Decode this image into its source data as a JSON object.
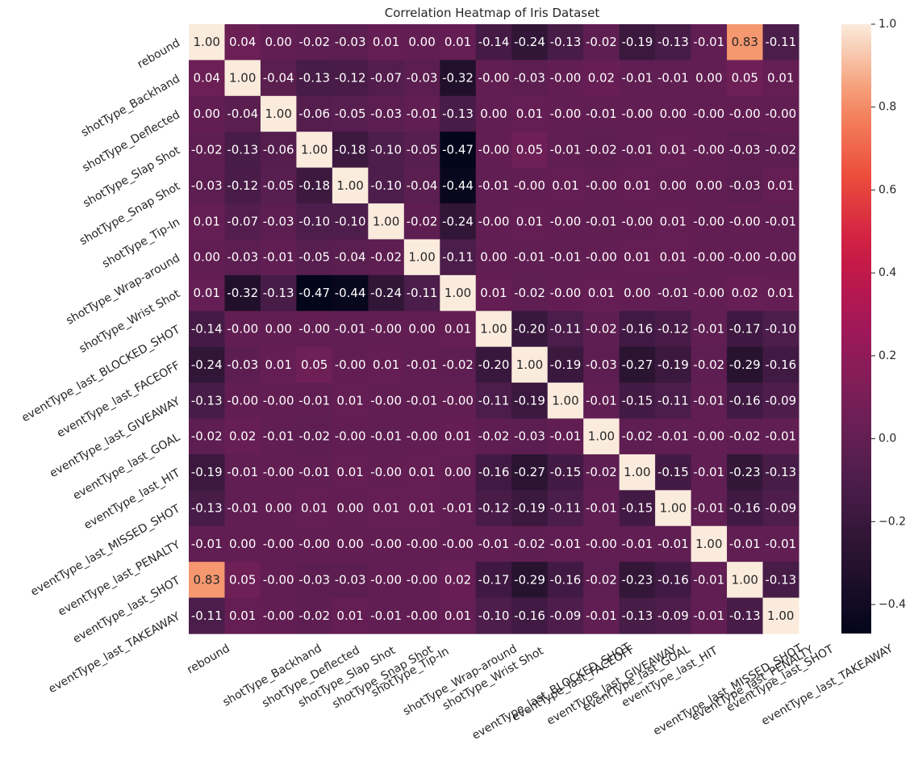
{
  "chart_data": {
    "type": "heatmap",
    "title": "Correlation Heatmap of Iris Dataset",
    "labels": [
      "rebound",
      "shotType_Backhand",
      "shotType_Deflected",
      "shotType_Slap Shot",
      "shotType_Snap Shot",
      "shotType_Tip-In",
      "shotType_Wrap-around",
      "shotType_Wrist Shot",
      "eventType_last_BLOCKED_SHOT",
      "eventType_last_FACEOFF",
      "eventType_last_GIVEAWAY",
      "eventType_last_GOAL",
      "eventType_last_HIT",
      "eventType_last_MISSED_SHOT",
      "eventType_last_PENALTY",
      "eventType_last_SHOT",
      "eventType_last_TAKEAWAY"
    ],
    "values": [
      [
        1.0,
        0.04,
        0.0,
        -0.02,
        -0.03,
        0.01,
        0.0,
        0.01,
        -0.14,
        -0.24,
        -0.13,
        -0.02,
        -0.19,
        -0.13,
        -0.01,
        0.83,
        -0.11
      ],
      [
        0.04,
        1.0,
        -0.04,
        -0.13,
        -0.12,
        -0.07,
        -0.03,
        -0.32,
        -0.0,
        -0.03,
        -0.0,
        0.02,
        -0.01,
        -0.01,
        0.0,
        0.05,
        0.01
      ],
      [
        0.0,
        -0.04,
        1.0,
        -0.06,
        -0.05,
        -0.03,
        -0.01,
        -0.13,
        0.0,
        0.01,
        -0.0,
        -0.01,
        -0.0,
        0.0,
        -0.0,
        -0.0,
        -0.0
      ],
      [
        -0.02,
        -0.13,
        -0.06,
        1.0,
        -0.18,
        -0.1,
        -0.05,
        -0.47,
        -0.0,
        0.05,
        -0.01,
        -0.02,
        -0.01,
        0.01,
        -0.0,
        -0.03,
        -0.02
      ],
      [
        -0.03,
        -0.12,
        -0.05,
        -0.18,
        1.0,
        -0.1,
        -0.04,
        -0.44,
        -0.01,
        -0.0,
        0.01,
        -0.0,
        0.01,
        0.0,
        0.0,
        -0.03,
        0.01
      ],
      [
        0.01,
        -0.07,
        -0.03,
        -0.1,
        -0.1,
        1.0,
        -0.02,
        -0.24,
        -0.0,
        0.01,
        -0.0,
        -0.01,
        -0.0,
        0.01,
        -0.0,
        -0.0,
        -0.01
      ],
      [
        0.0,
        -0.03,
        -0.01,
        -0.05,
        -0.04,
        -0.02,
        1.0,
        -0.11,
        0.0,
        -0.01,
        -0.01,
        -0.0,
        0.01,
        0.01,
        -0.0,
        -0.0,
        -0.0
      ],
      [
        0.01,
        -0.32,
        -0.13,
        -0.47,
        -0.44,
        -0.24,
        -0.11,
        1.0,
        0.01,
        -0.02,
        -0.0,
        0.01,
        0.0,
        -0.01,
        -0.0,
        0.02,
        0.01
      ],
      [
        -0.14,
        -0.0,
        0.0,
        -0.0,
        -0.01,
        -0.0,
        0.0,
        0.01,
        1.0,
        -0.2,
        -0.11,
        -0.02,
        -0.16,
        -0.12,
        -0.01,
        -0.17,
        -0.1
      ],
      [
        -0.24,
        -0.03,
        0.01,
        0.05,
        -0.0,
        0.01,
        -0.01,
        -0.02,
        -0.2,
        1.0,
        -0.19,
        -0.03,
        -0.27,
        -0.19,
        -0.02,
        -0.29,
        -0.16
      ],
      [
        -0.13,
        -0.0,
        -0.0,
        -0.01,
        0.01,
        -0.0,
        -0.01,
        -0.0,
        -0.11,
        -0.19,
        1.0,
        -0.01,
        -0.15,
        -0.11,
        -0.01,
        -0.16,
        -0.09
      ],
      [
        -0.02,
        0.02,
        -0.01,
        -0.02,
        -0.0,
        -0.01,
        -0.0,
        0.01,
        -0.02,
        -0.03,
        -0.01,
        1.0,
        -0.02,
        -0.01,
        -0.0,
        -0.02,
        -0.01
      ],
      [
        -0.19,
        -0.01,
        -0.0,
        -0.01,
        0.01,
        -0.0,
        0.01,
        0.0,
        -0.16,
        -0.27,
        -0.15,
        -0.02,
        1.0,
        -0.15,
        -0.01,
        -0.23,
        -0.13
      ],
      [
        -0.13,
        -0.01,
        0.0,
        0.01,
        0.0,
        0.01,
        0.01,
        -0.01,
        -0.12,
        -0.19,
        -0.11,
        -0.01,
        -0.15,
        1.0,
        -0.01,
        -0.16,
        -0.09
      ],
      [
        -0.01,
        0.0,
        -0.0,
        -0.0,
        0.0,
        -0.0,
        -0.0,
        -0.0,
        -0.01,
        -0.02,
        -0.01,
        -0.0,
        -0.01,
        -0.01,
        1.0,
        -0.01,
        -0.01
      ],
      [
        0.83,
        0.05,
        -0.0,
        -0.03,
        -0.03,
        -0.0,
        -0.0,
        0.02,
        -0.17,
        -0.29,
        -0.16,
        -0.02,
        -0.23,
        -0.16,
        -0.01,
        1.0,
        -0.13
      ],
      [
        -0.11,
        0.01,
        -0.0,
        -0.02,
        0.01,
        -0.01,
        -0.0,
        0.01,
        -0.1,
        -0.16,
        -0.09,
        -0.01,
        -0.13,
        -0.09,
        -0.01,
        -0.13,
        1.0
      ]
    ],
    "vmin": -0.47,
    "vmax": 1.0,
    "colormap": "rocket",
    "colorbar_ticks": [
      "1.0",
      "0.8",
      "0.6",
      "0.4",
      "0.2",
      "0.0",
      "−0.2",
      "−0.4"
    ],
    "colorbar_tick_values": [
      1.0,
      0.8,
      0.6,
      0.4,
      0.2,
      0.0,
      -0.2,
      -0.4
    ],
    "grid": false,
    "legend": "colorbar-right"
  }
}
